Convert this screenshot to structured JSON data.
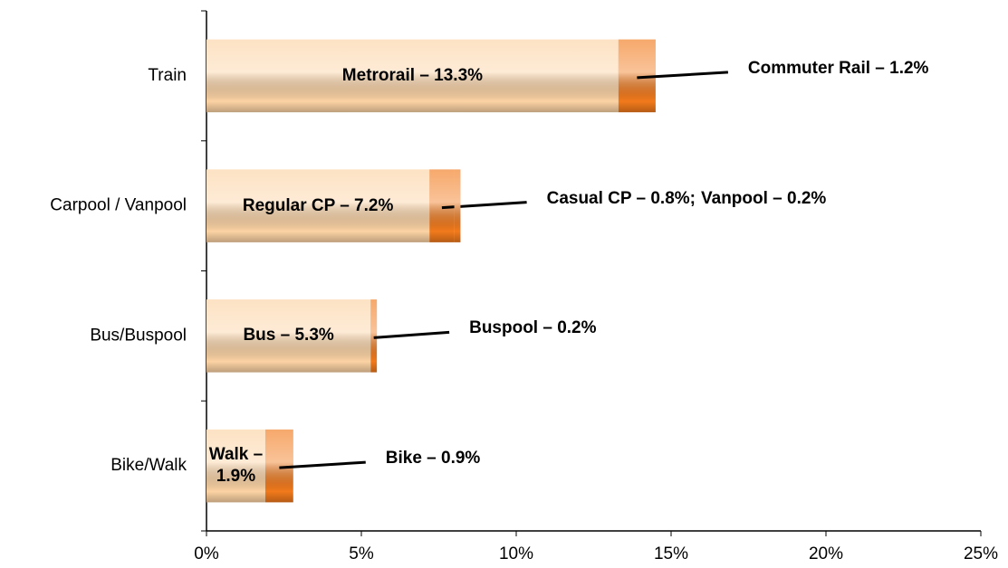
{
  "chart_data": {
    "type": "stacked-barh",
    "categories": [
      "Train",
      "Carpool / Vanpool",
      "Bus/Buspool",
      "Bike/Walk"
    ],
    "series": [
      {
        "color": "#fcd3a4",
        "values": [
          13.3,
          7.2,
          5.3,
          1.9
        ],
        "value_labels": [
          "Metrorail – 13.3%",
          "Regular CP – 7.2%",
          "Bus – 5.3%",
          "Walk – 1.9%"
        ]
      },
      {
        "color": "#f27a1c",
        "values": [
          1.2,
          0.8,
          0.2,
          0.9
        ],
        "value_labels": [
          "Commuter Rail – 1.2%",
          "Casual CP – 0.8%;",
          "Buspool – 0.2%",
          "Bike – 0.9%"
        ]
      },
      {
        "color": "#f27a1c",
        "values": [
          null,
          0.2,
          null,
          null
        ],
        "value_labels": [
          null,
          "Vanpool – 0.2%",
          null,
          null
        ]
      }
    ],
    "xlim": [
      0,
      25
    ],
    "xticks": [
      {
        "value": 0,
        "label": "0%"
      },
      {
        "value": 5,
        "label": "5%"
      },
      {
        "value": 10,
        "label": "10%"
      },
      {
        "value": 15,
        "label": "15%"
      },
      {
        "value": 20,
        "label": "20%"
      },
      {
        "value": 25,
        "label": "25%"
      }
    ],
    "grid": false
  }
}
